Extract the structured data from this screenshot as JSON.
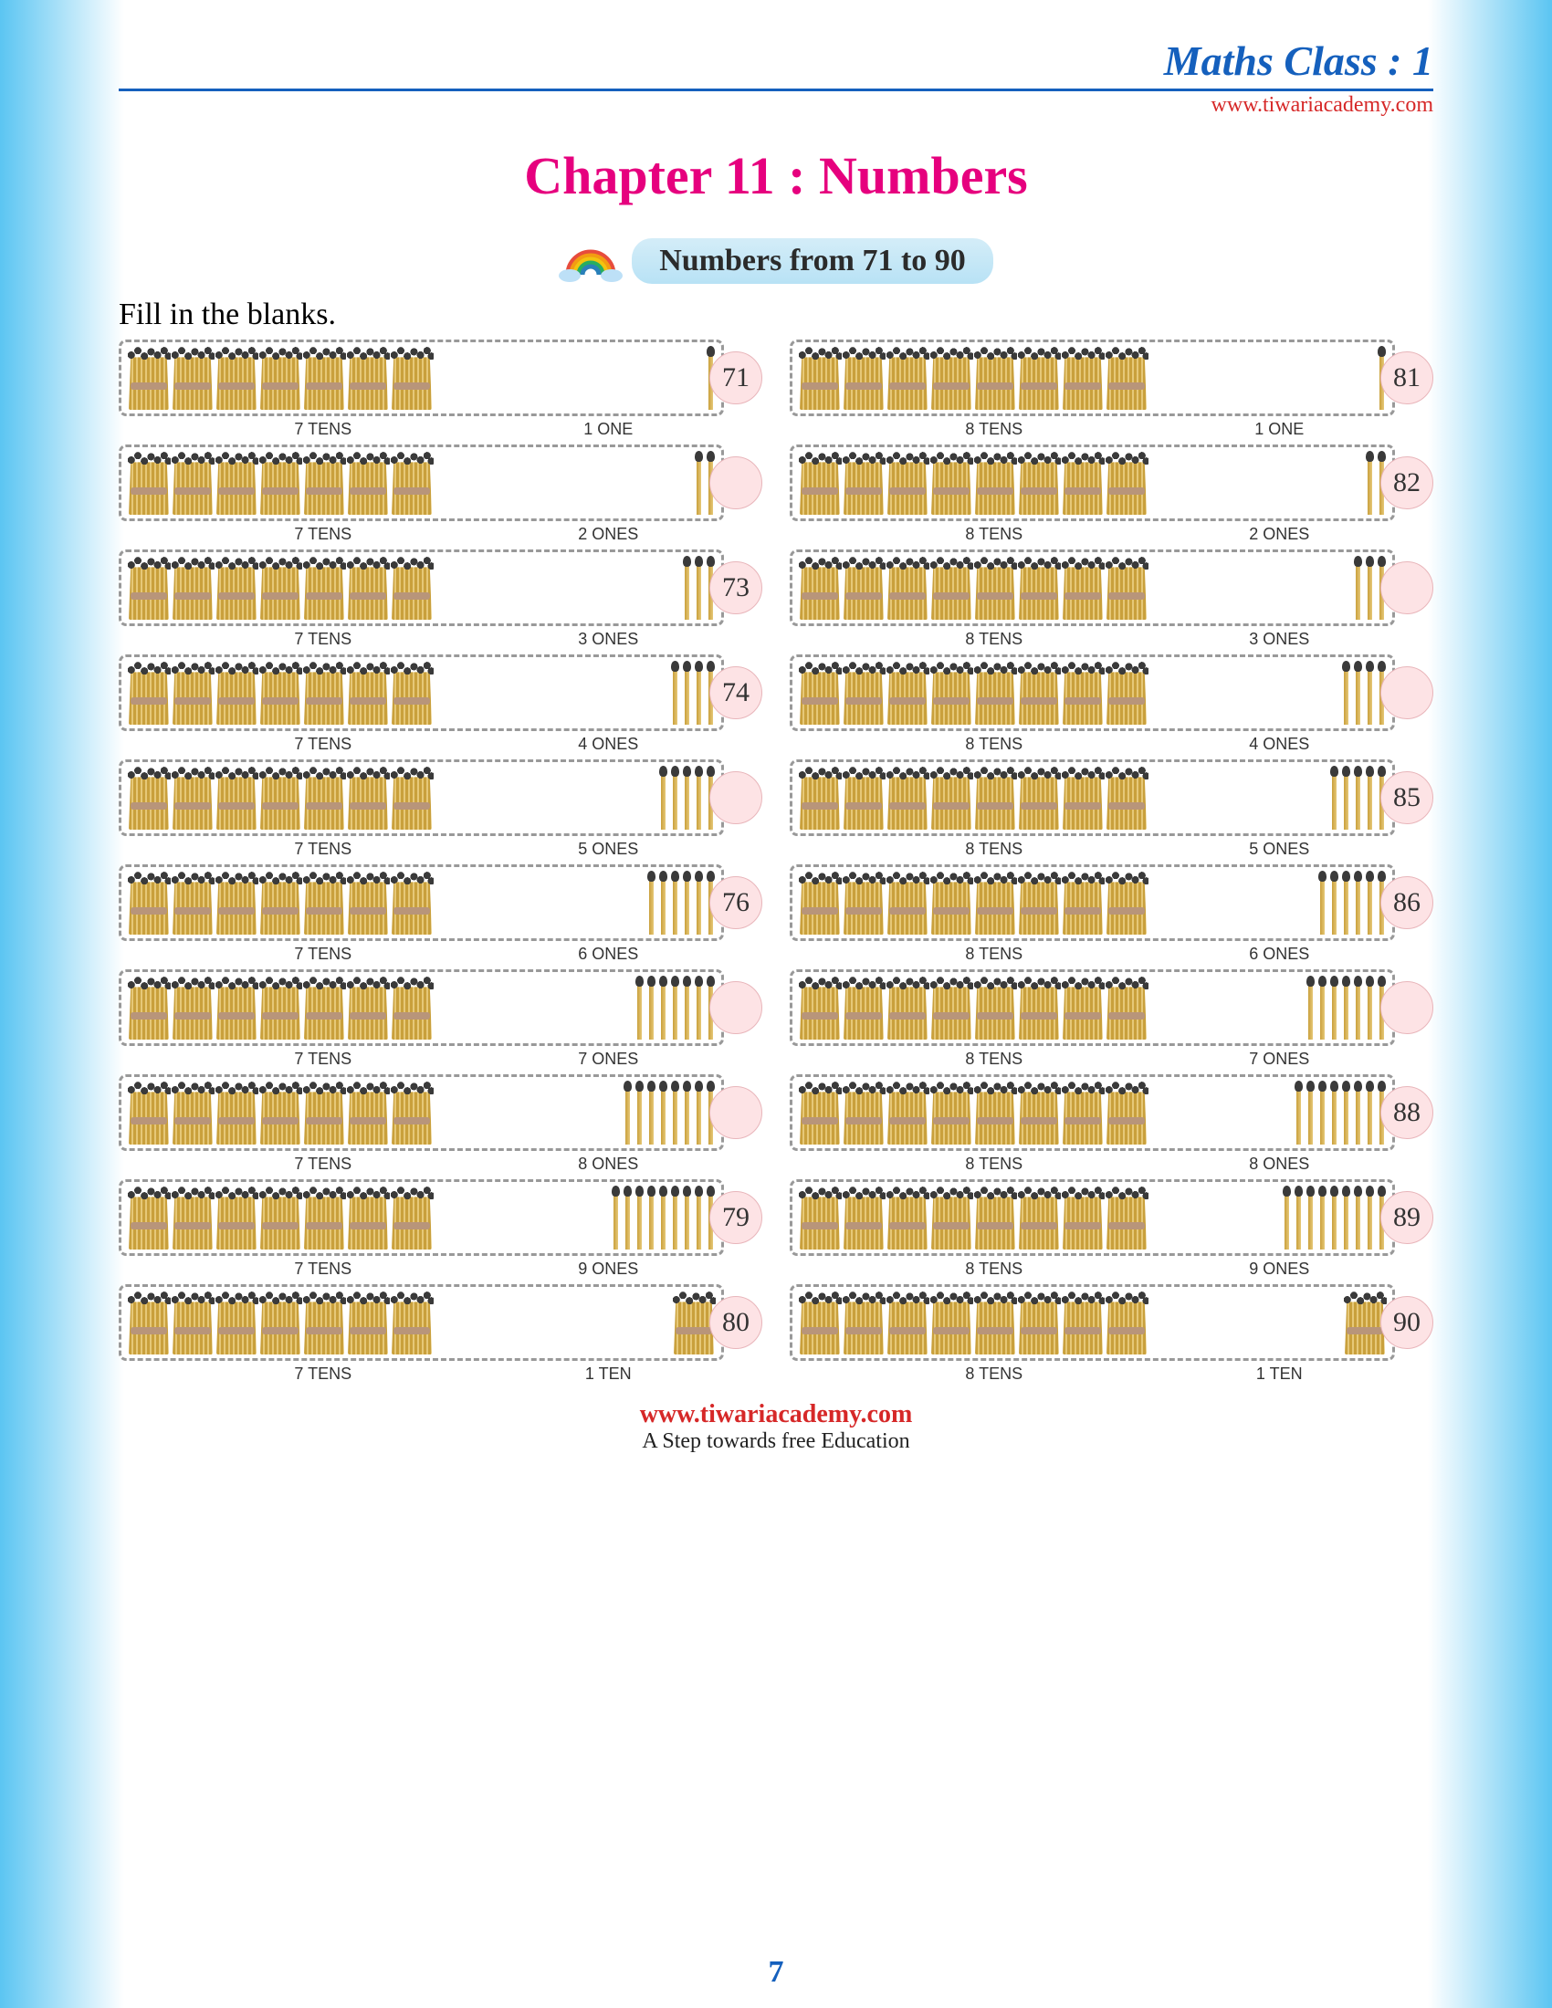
{
  "header": {
    "class_title": "Maths Class : 1",
    "url": "www.tiwariacademy.com"
  },
  "chapter_title": "Chapter 11 : Numbers",
  "subtitle": "Numbers from 71 to 90",
  "instruction": "Fill in the blanks.",
  "colors": {
    "title_blue": "#1560bd",
    "chapter_pink": "#e6007e",
    "url_red": "#d62828",
    "circle_fill": "#fde3e5",
    "circle_border": "#e8b5ba",
    "stick_dark": "#c9a03c",
    "stick_light": "#e6c878",
    "match_head": "#3a3a3a",
    "subtitle_bg": "#b8e2f5",
    "border_dash": "#999999",
    "gradient_edge": "#5bc5f2"
  },
  "circle_style": {
    "diameter": 58,
    "font_size": 30
  },
  "left_column": [
    {
      "tens": 7,
      "ones": 1,
      "tens_label": "7 TENS",
      "ones_label": "1 ONE",
      "answer": "71",
      "show": true
    },
    {
      "tens": 7,
      "ones": 2,
      "tens_label": "7 TENS",
      "ones_label": "2 ONES",
      "answer": "",
      "show": false
    },
    {
      "tens": 7,
      "ones": 3,
      "tens_label": "7 TENS",
      "ones_label": "3 ONES",
      "answer": "73",
      "show": true
    },
    {
      "tens": 7,
      "ones": 4,
      "tens_label": "7 TENS",
      "ones_label": "4 ONES",
      "answer": "74",
      "show": true
    },
    {
      "tens": 7,
      "ones": 5,
      "tens_label": "7 TENS",
      "ones_label": "5 ONES",
      "answer": "",
      "show": false
    },
    {
      "tens": 7,
      "ones": 6,
      "tens_label": "7 TENS",
      "ones_label": "6 ONES",
      "answer": "76",
      "show": true
    },
    {
      "tens": 7,
      "ones": 7,
      "tens_label": "7 TENS",
      "ones_label": "7 ONES",
      "answer": "",
      "show": false
    },
    {
      "tens": 7,
      "ones": 8,
      "tens_label": "7 TENS",
      "ones_label": "8 ONES",
      "answer": "",
      "show": false
    },
    {
      "tens": 7,
      "ones": 9,
      "tens_label": "7 TENS",
      "ones_label": "9 ONES",
      "answer": "79",
      "show": true
    },
    {
      "tens": 7,
      "ones": 10,
      "tens_label": "7 TENS",
      "ones_label": "1 TEN",
      "answer": "80",
      "show": true,
      "ones_as_bundle": true
    }
  ],
  "right_column": [
    {
      "tens": 8,
      "ones": 1,
      "tens_label": "8 TENS",
      "ones_label": "1 ONE",
      "answer": "81",
      "show": true
    },
    {
      "tens": 8,
      "ones": 2,
      "tens_label": "8 TENS",
      "ones_label": "2 ONES",
      "answer": "82",
      "show": true
    },
    {
      "tens": 8,
      "ones": 3,
      "tens_label": "8 TENS",
      "ones_label": "3 ONES",
      "answer": "",
      "show": false
    },
    {
      "tens": 8,
      "ones": 4,
      "tens_label": "8 TENS",
      "ones_label": "4 ONES",
      "answer": "",
      "show": false
    },
    {
      "tens": 8,
      "ones": 5,
      "tens_label": "8 TENS",
      "ones_label": "5 ONES",
      "answer": "85",
      "show": true
    },
    {
      "tens": 8,
      "ones": 6,
      "tens_label": "8 TENS",
      "ones_label": "6 ONES",
      "answer": "86",
      "show": true
    },
    {
      "tens": 8,
      "ones": 7,
      "tens_label": "8 TENS",
      "ones_label": "7 ONES",
      "answer": "",
      "show": false
    },
    {
      "tens": 8,
      "ones": 8,
      "tens_label": "8 TENS",
      "ones_label": "8 ONES",
      "answer": "88",
      "show": true
    },
    {
      "tens": 8,
      "ones": 9,
      "tens_label": "8 TENS",
      "ones_label": "9 ONES",
      "answer": "89",
      "show": true
    },
    {
      "tens": 8,
      "ones": 10,
      "tens_label": "8 TENS",
      "ones_label": "1 TEN",
      "answer": "90",
      "show": true,
      "ones_as_bundle": true
    }
  ],
  "footer": {
    "url": "www.tiwariacademy.com",
    "tagline": "A Step towards free Education"
  },
  "page_number": "7"
}
